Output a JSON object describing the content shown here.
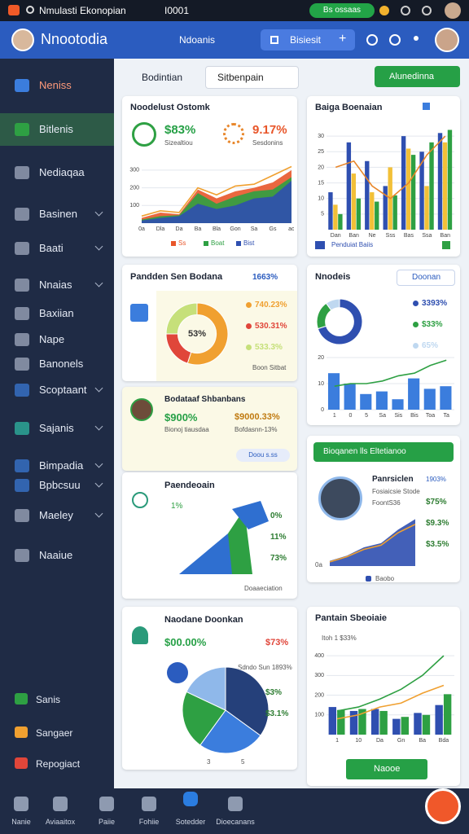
{
  "status_bar": {
    "tab_title": "Nmulasti Ekonopian",
    "tab_2": "I0001",
    "pill": "Bs ossaas"
  },
  "header": {
    "title": "Nnootodia",
    "nav": "Ndoanis",
    "button": "Bisiesit"
  },
  "sidebar": {
    "items": [
      "Neniss",
      "Bitlenis",
      "Nediaqaa",
      "Basinen",
      "Baati",
      "Nnaias",
      "Baxiian",
      "Nape",
      "Banonels",
      "Scoptaant",
      "Sajanis",
      "Bimpadia",
      "Bpbcsuu",
      "Maeley",
      "Naaiue"
    ],
    "bottom": [
      "Sanis",
      "Sangaer",
      "Repogiact"
    ]
  },
  "toolbar": {
    "label": "Bodintian",
    "select": "Sitbenpain",
    "button": "Alunedinna"
  },
  "cards": {
    "overview": {
      "title": "Noodelust Ostomk",
      "stat_1": "$83%",
      "stat_1_caption": "Sizealtiou",
      "stat_2": "9.17%",
      "stat_2_caption": "Sesdonins",
      "chart": {
        "type": "area",
        "ylim": [
          0,
          350
        ],
        "yticks": [
          100,
          200,
          300
        ],
        "categories": [
          "0a",
          "Dla",
          "Da",
          "Ba",
          "Bla",
          "Gon",
          "Sa",
          "Gs",
          "ao"
        ],
        "series": [
          {
            "name": "Ss",
            "color": "#e8562a",
            "values": [
              30,
              60,
              50,
              190,
              140,
              180,
              200,
              230,
              300
            ]
          },
          {
            "name": "Boat",
            "color": "#2ea043",
            "values": [
              20,
              40,
              45,
              170,
              110,
              150,
              180,
              190,
              260
            ]
          },
          {
            "name": "Bist",
            "color": "#2f4fb0",
            "values": [
              15,
              30,
              40,
              110,
              80,
              100,
              140,
              150,
              240
            ]
          },
          {
            "kind": "line",
            "color": "#f0a030",
            "values": [
              40,
              70,
              60,
              200,
              160,
              210,
              220,
              270,
              320
            ]
          }
        ]
      }
    },
    "bars": {
      "title": "Baiga Boenaian",
      "footer": "Penduiat Baiis",
      "chart": {
        "type": "bar",
        "ylim": [
          0,
          35
        ],
        "yticks": [
          5,
          10,
          15,
          20,
          25,
          30
        ],
        "categories": [
          "Dan",
          "Ban",
          "Ne",
          "Sss",
          "Bas",
          "Ssa",
          "Ban"
        ],
        "series": [
          {
            "color": "#2f4fb0",
            "values": [
              12,
              28,
              22,
              14,
              30,
              25,
              31
            ]
          },
          {
            "color": "#f2c038",
            "values": [
              8,
              18,
              12,
              20,
              26,
              14,
              28
            ]
          },
          {
            "color": "#2ea043",
            "values": [
              5,
              10,
              9,
              11,
              24,
              28,
              32
            ]
          },
          {
            "kind": "line",
            "color": "#e8862a",
            "values": [
              20,
              22,
              14,
              10,
              15,
              24,
              30
            ]
          }
        ]
      }
    },
    "donut_card": {
      "title": "Pandden Sen Bodana",
      "badge": "1663%",
      "footer": "Boon Sitbat",
      "legend": [
        "740.23%",
        "530.31%",
        "533.3%"
      ],
      "chart": {
        "type": "donut",
        "center_label": "53%",
        "values": [
          55,
          20,
          25
        ],
        "colors": [
          "#f0a030",
          "#e0463a",
          "#c6e07a"
        ]
      }
    },
    "models": {
      "title": "Nnodeis",
      "select": "Doonan",
      "legend": [
        "3393%",
        "$33%",
        "65%"
      ],
      "donut": {
        "type": "donut",
        "values": [
          70,
          20,
          10
        ],
        "colors": [
          "#2f4fb0",
          "#2ea043",
          "#bfd8f0"
        ]
      },
      "chart": {
        "type": "bar",
        "ylim": [
          0,
          20
        ],
        "yticks": [
          0,
          10,
          20
        ],
        "categories": [
          "1",
          "0",
          "5",
          "Sa",
          "Sis",
          "Bis",
          "Toa",
          "Ta"
        ],
        "series": [
          {
            "color": "#3b7ddd",
            "values": [
              14,
              10,
              6,
              7,
              4,
              12,
              8,
              9
            ]
          },
          {
            "kind": "line",
            "color": "#2ea043",
            "values": [
              9,
              10,
              10,
              11,
              13,
              14,
              17,
              19
            ]
          }
        ]
      }
    },
    "profile_stats": {
      "title": "Bodataaf Shbanbans",
      "stat_1": "$900%",
      "stat_1_caption": "Bionoj tiausdaa",
      "stat_2": "$9000.33%",
      "stat_2_caption": "Bofdasnn-13%",
      "pill": "Doou s.ss"
    },
    "mountain": {
      "title": "Paendeoain",
      "label_left": "1%",
      "labels_right": [
        "0%",
        "11%",
        "73%"
      ],
      "footer": "Doaaeciation"
    },
    "person": {
      "header": "Bioqanen lls Eltetianoo",
      "name": "Panrsiclen",
      "name_stat": "1903%",
      "role": "Fosiaicsie Stode",
      "id": "FoontS36",
      "stats": [
        "$75%",
        "$9.3%",
        "$3.5%"
      ],
      "axis_label": "0a",
      "legend": "Baobo",
      "chart": {
        "type": "area",
        "ylim": [
          0,
          50
        ],
        "series": [
          {
            "color": "#2f4fb0",
            "values": [
              5,
              10,
              18,
              22,
              35,
              45
            ]
          },
          {
            "kind": "line",
            "color": "#f0a030",
            "values": [
              4,
              9,
              16,
              20,
              32,
              40
            ]
          }
        ]
      }
    },
    "pie_card": {
      "title": "Naodane Doonkan",
      "stat_1": "$00.00%",
      "stat_2": "$73%",
      "note": "Sdndo Sun 1893%",
      "labels_right": [
        "$3%",
        "$3.1%"
      ],
      "axis": [
        "3",
        "5"
      ],
      "chart": {
        "type": "pie",
        "values": [
          35,
          25,
          22,
          18
        ],
        "colors": [
          "#25407a",
          "#3b7ddd",
          "#2ea043",
          "#8fb8ea"
        ]
      }
    },
    "trend": {
      "title": "Pantain Sbeoiaie",
      "subtitle": "Itoh 1 $33%",
      "button": "Naooe",
      "chart": {
        "type": "bar",
        "ylim": [
          0,
          450
        ],
        "yticks": [
          100,
          200,
          300,
          400
        ],
        "categories": [
          "1",
          "10",
          "Da",
          "Gn",
          "Ba",
          "Bda"
        ],
        "series": [
          {
            "color": "#2f4fb0",
            "values": [
              140,
              120,
              130,
              80,
              110,
              150
            ]
          },
          {
            "color": "#2ea043",
            "values": [
              125,
              130,
              120,
              90,
              100,
              205
            ]
          },
          {
            "kind": "line",
            "color": "#2ea043",
            "values": [
              120,
              140,
              180,
              230,
              300,
              400
            ]
          },
          {
            "kind": "line",
            "color": "#f0a030",
            "values": [
              80,
              100,
              140,
              160,
              210,
              250
            ]
          }
        ]
      }
    }
  },
  "bottom_nav": [
    "Nanie",
    "Aviaaitox",
    "Paiie",
    "Fohiie",
    "Sotedder",
    "Dioecanans"
  ]
}
